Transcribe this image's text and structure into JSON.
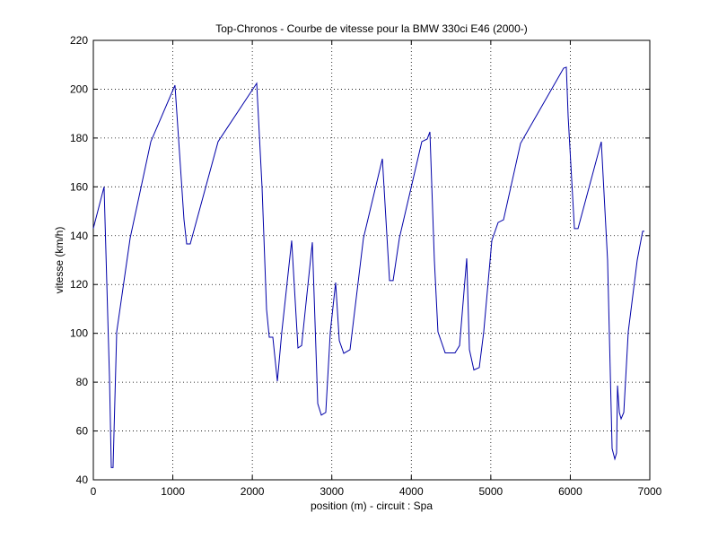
{
  "chart_data": {
    "type": "line",
    "title": "Top-Chronos - Courbe de vitesse pour la BMW 330ci E46 (2000-)",
    "xlabel": "position (m) - circuit : Spa",
    "ylabel": "vitesse (km/h)",
    "x": [
      0,
      135,
      203,
      226,
      248,
      294,
      463,
      723,
      1027,
      1084,
      1140,
      1174,
      1219,
      1569,
      2055,
      2123,
      2179,
      2213,
      2258,
      2315,
      2371,
      2495,
      2574,
      2620,
      2755,
      2823,
      2868,
      2924,
      2981,
      3048,
      3094,
      3150,
      3229,
      3398,
      3636,
      3726,
      3771,
      3850,
      4132,
      4200,
      4234,
      4290,
      4335,
      4426,
      4550,
      4607,
      4697,
      4731,
      4787,
      4855,
      4911,
      5013,
      5092,
      5160,
      5374,
      5916,
      5950,
      5973,
      6052,
      6097,
      6390,
      6469,
      6526,
      6560,
      6582,
      6594,
      6617,
      6639,
      6673,
      6729,
      6842,
      6910,
      6932
    ],
    "values": [
      143,
      160,
      82,
      45,
      45,
      100.6,
      139,
      178.5,
      201.6,
      174,
      146.7,
      136.6,
      136.6,
      178.5,
      202.4,
      159.4,
      109.8,
      98.4,
      98.4,
      80.4,
      100.6,
      138,
      94,
      95,
      137.3,
      71.2,
      66.5,
      67.6,
      100.6,
      120.8,
      97,
      91.8,
      93.3,
      139,
      171.5,
      121.6,
      121.6,
      139,
      178.5,
      179.6,
      182.5,
      130,
      100.6,
      92,
      92,
      95,
      130.7,
      93.3,
      85,
      86,
      100.6,
      138,
      145.4,
      146.5,
      177.8,
      208.6,
      209,
      188.8,
      142.9,
      142.9,
      178.5,
      130,
      52.8,
      48.5,
      51,
      78.6,
      67.6,
      65,
      67.6,
      100.6,
      130,
      141.8,
      141.8
    ],
    "color": "#0000a8",
    "xlim": [
      0,
      7000
    ],
    "xticks": [
      0,
      1000,
      2000,
      3000,
      4000,
      5000,
      6000,
      7000
    ],
    "ylim": [
      40,
      220
    ],
    "yticks": [
      40,
      60,
      80,
      100,
      120,
      140,
      160,
      180,
      200,
      220
    ],
    "grid": true
  }
}
